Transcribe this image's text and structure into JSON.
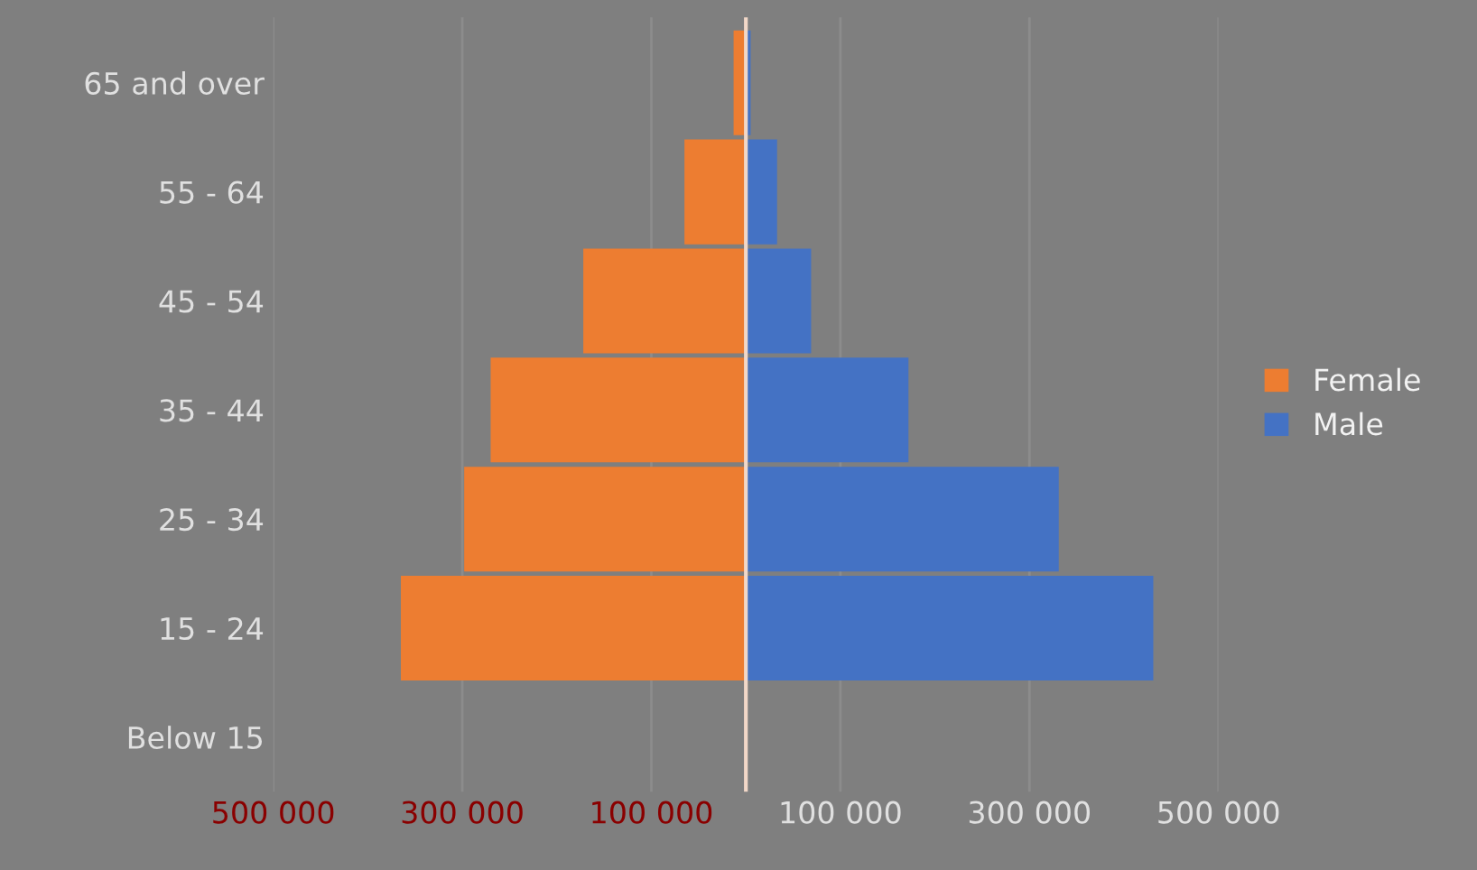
{
  "chart_data": {
    "type": "bar",
    "orientation": "horizontal",
    "categories": [
      "65 and over",
      "55 - 64",
      "45 - 54",
      "35 - 44",
      "25 - 34",
      "15 - 24",
      "Below 15"
    ],
    "series": [
      {
        "name": "Female",
        "color": "#ed7d31",
        "values": [
          -13000,
          -65000,
          -172000,
          -270000,
          -298000,
          -365000,
          0
        ]
      },
      {
        "name": "Male",
        "color": "#4472c4",
        "values": [
          5000,
          33000,
          69000,
          172000,
          331000,
          431000,
          0
        ]
      }
    ],
    "xlim": [
      -500000,
      500000
    ],
    "xticks": [
      {
        "value": -500000,
        "label": "500 000"
      },
      {
        "value": -300000,
        "label": "300 000"
      },
      {
        "value": -100000,
        "label": "100 000"
      },
      {
        "value": 100000,
        "label": "100 000"
      },
      {
        "value": 300000,
        "label": "300 000"
      },
      {
        "value": 500000,
        "label": "500 000"
      }
    ],
    "ref_lines": [
      {
        "axis": "x",
        "value": 0,
        "color": "#f2d8c8"
      }
    ],
    "stacked": true,
    "grid": "x",
    "legend": "right"
  }
}
